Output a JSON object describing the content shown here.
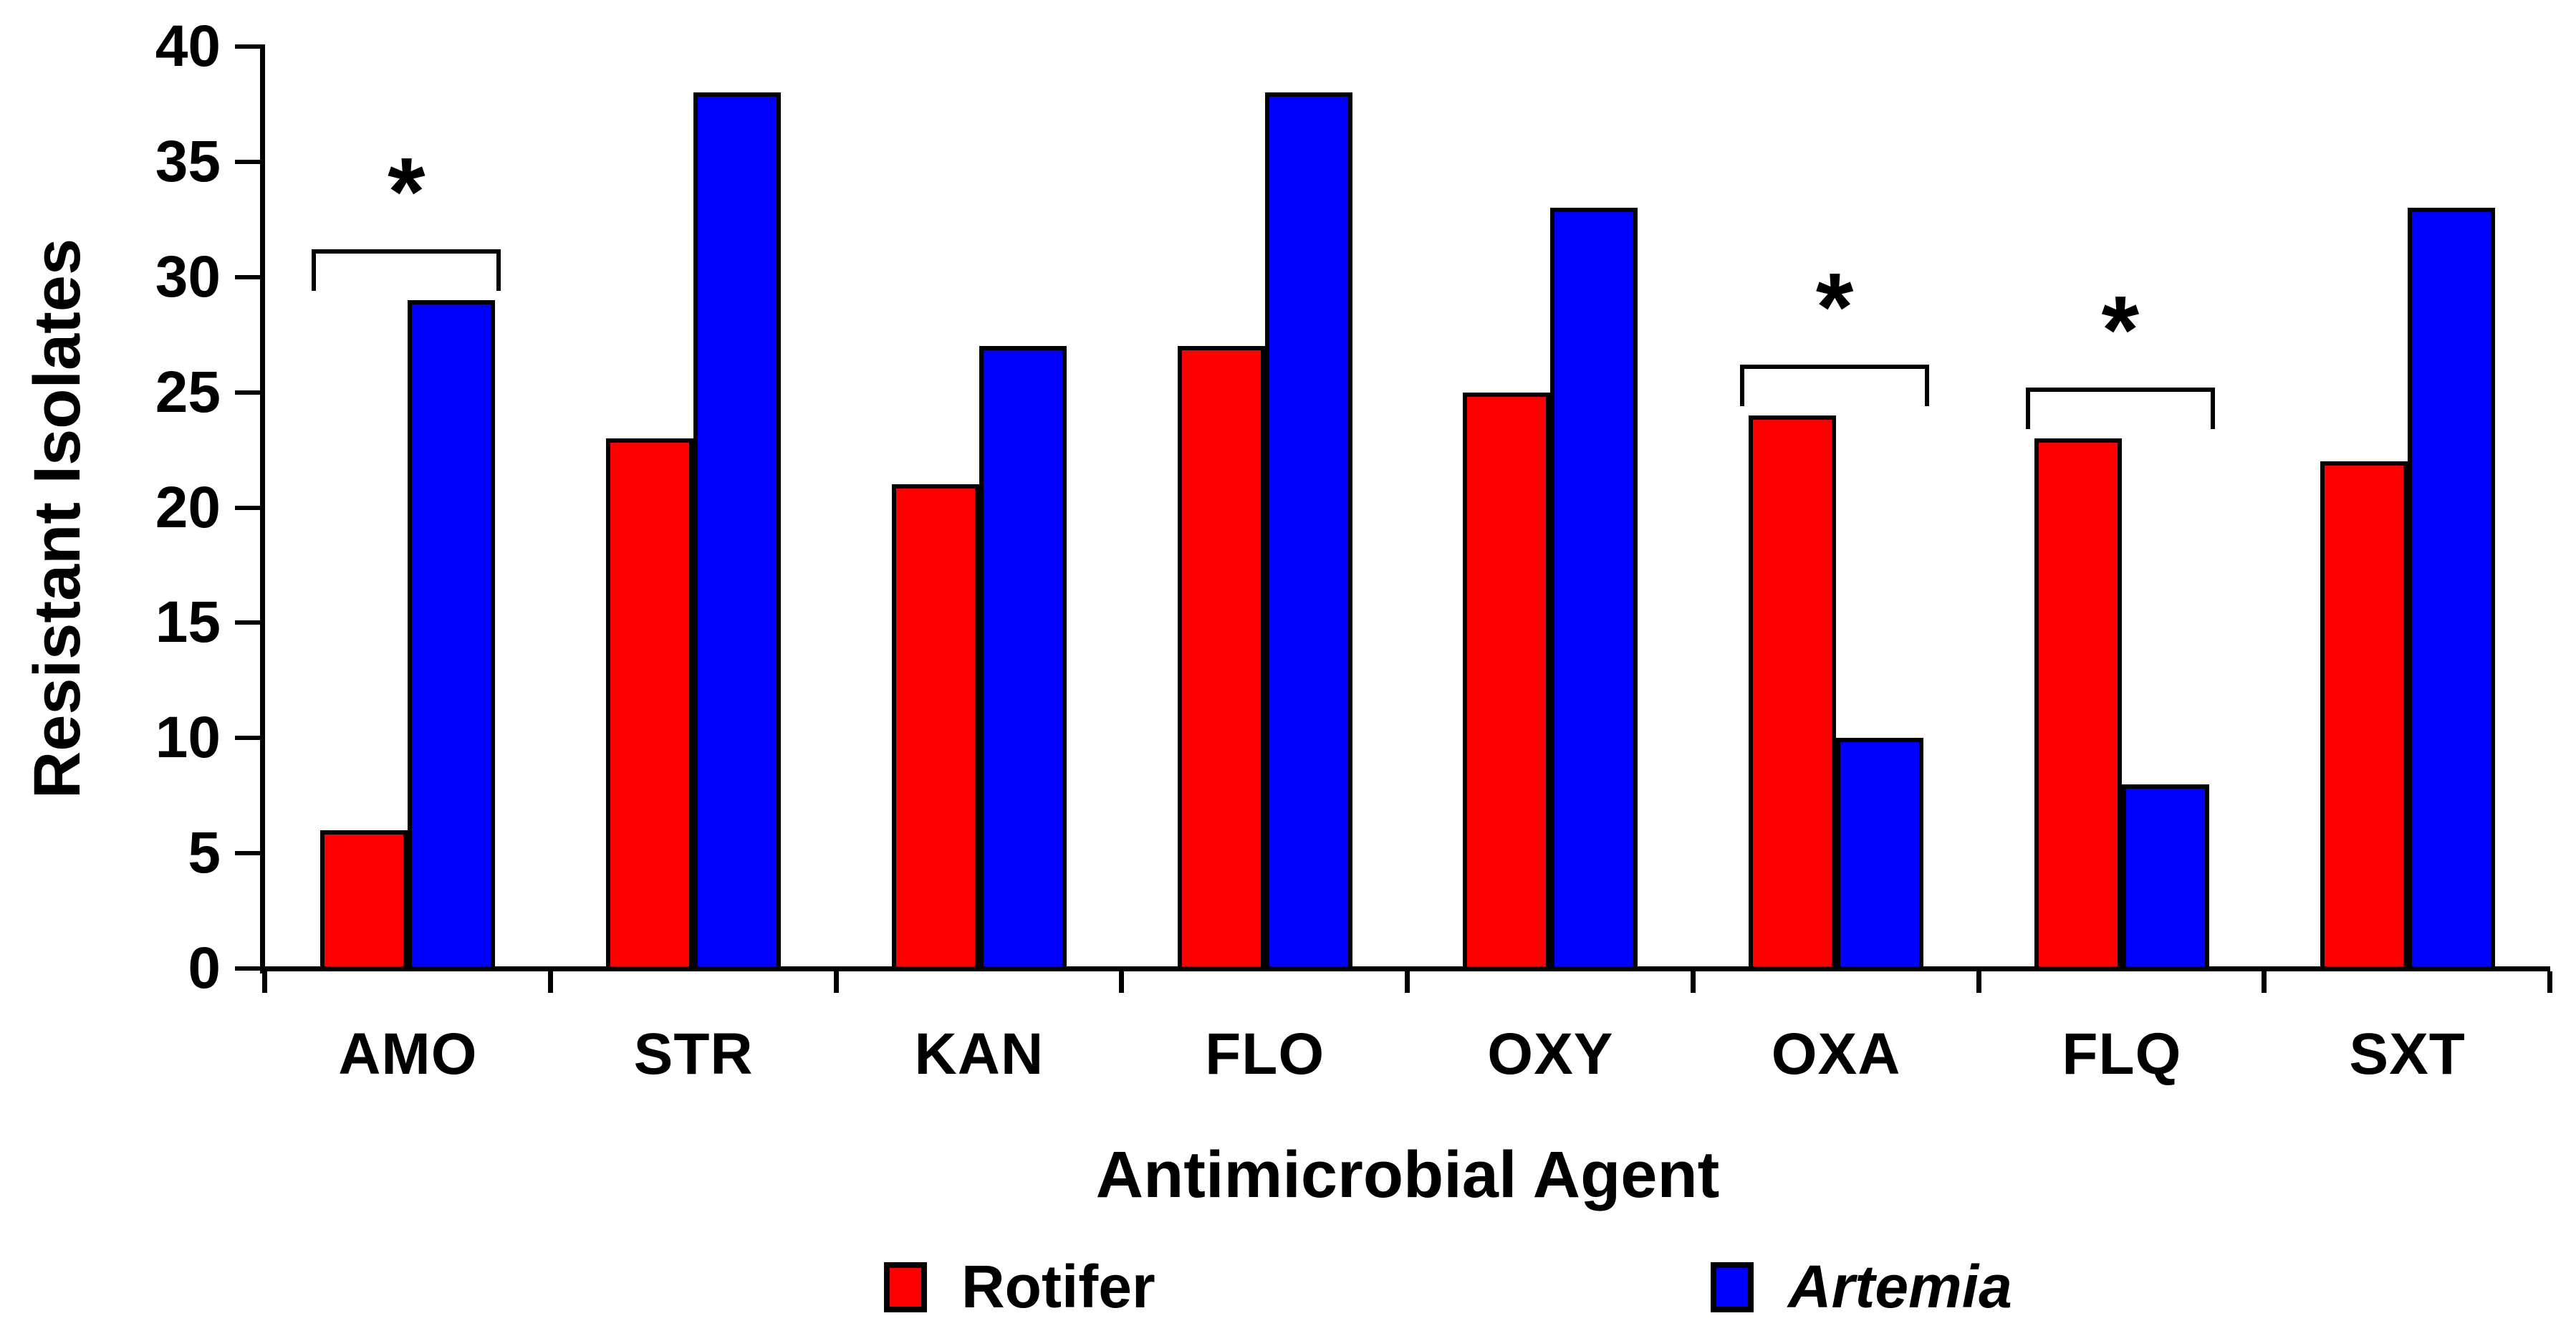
{
  "figure": {
    "y_axis_title": "Resistant Isolates",
    "x_axis_title": "Antimicrobial Agent",
    "significance_symbol": "*",
    "legend": [
      {
        "label": "Rotifer",
        "color": "#ff0000",
        "italic": false
      },
      {
        "label": "Artemia",
        "color": "#0000ff",
        "italic": true
      }
    ]
  },
  "chart_data": {
    "type": "bar",
    "title": "",
    "xlabel": "Antimicrobial Agent",
    "ylabel": "Resistant Isolates",
    "categories": [
      "AMO",
      "STR",
      "KAN",
      "FLO",
      "OXY",
      "OXA",
      "FLQ",
      "SXT"
    ],
    "series": [
      {
        "name": "Rotifer",
        "color": "#ff0000",
        "values": [
          6,
          23,
          21,
          27,
          25,
          24,
          23,
          22
        ]
      },
      {
        "name": "Artemia",
        "color": "#0000ff",
        "values": [
          29,
          38,
          27,
          38,
          33,
          10,
          8,
          33
        ]
      }
    ],
    "ylim": [
      0,
      40
    ],
    "yticks": [
      0,
      5,
      10,
      15,
      20,
      25,
      30,
      35,
      40
    ],
    "grid": false,
    "bar_edge_color": "#000000",
    "legend_position": "bottom",
    "annotations": [
      {
        "type": "significance-bracket",
        "category": "AMO",
        "symbol": "*"
      },
      {
        "type": "significance-bracket",
        "category": "OXA",
        "symbol": "*"
      },
      {
        "type": "significance-bracket",
        "category": "FLQ",
        "symbol": "*"
      }
    ]
  }
}
